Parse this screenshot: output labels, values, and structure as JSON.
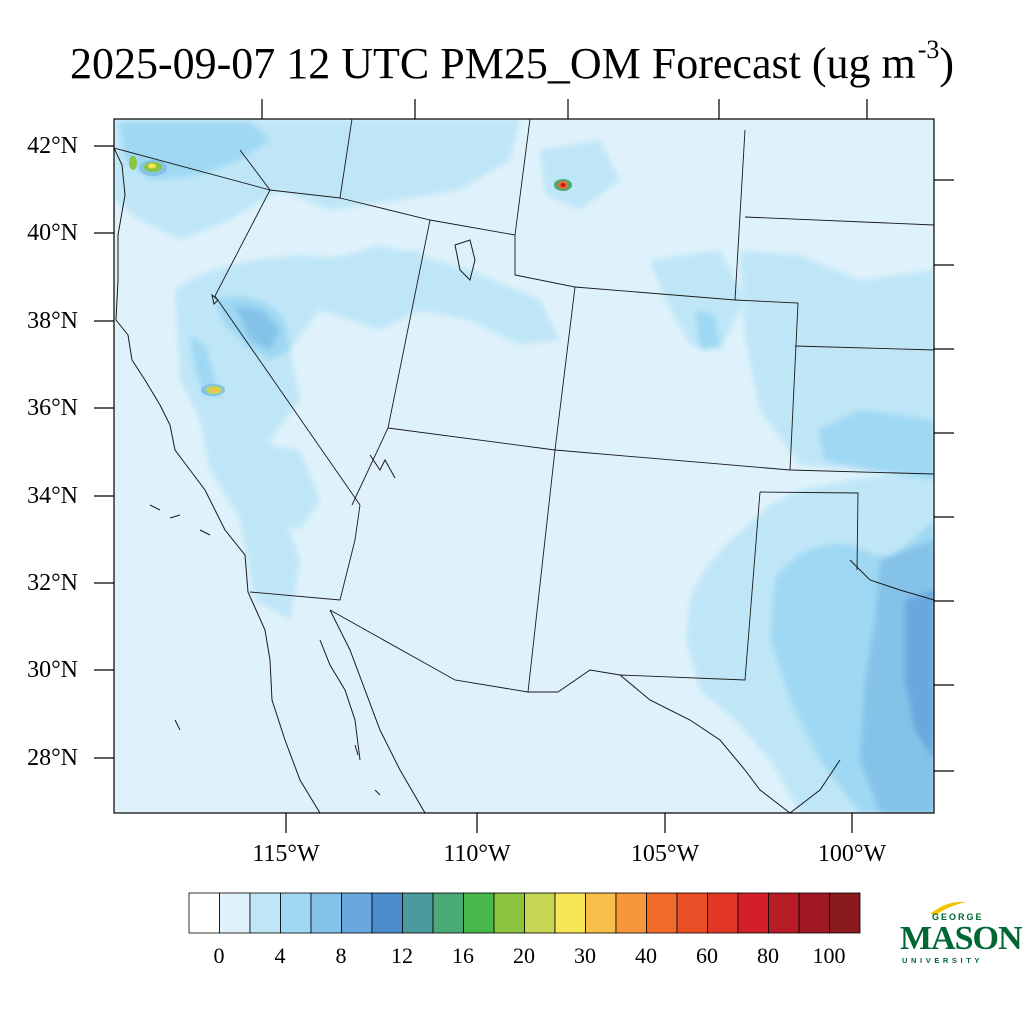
{
  "title": {
    "text": "2025-09-07 12 UTC PM25_OM Forecast (ug m",
    "superscript": "-3",
    "close": ")"
  },
  "axes": {
    "lat_labels": [
      "42°N",
      "40°N",
      "38°N",
      "36°N",
      "34°N",
      "32°N",
      "30°N",
      "28°N"
    ],
    "lon_labels": [
      "115°W",
      "110°W",
      "105°W",
      "100°W"
    ]
  },
  "colorbar": {
    "labels": [
      "0",
      "4",
      "8",
      "12",
      "16",
      "20",
      "30",
      "40",
      "60",
      "80",
      "100"
    ],
    "colors": [
      "#ffffff",
      "#dff2fb",
      "#bfe6f7",
      "#9fd8f3",
      "#84c2e8",
      "#69a8dd",
      "#4b8ccc",
      "#4a9a9e",
      "#4aaa76",
      "#46b748",
      "#8cc43f",
      "#c6d553",
      "#f6e556",
      "#f8bf4a",
      "#f6973c",
      "#f26a2a",
      "#e94e26",
      "#e23726",
      "#d21f2a",
      "#b81c27",
      "#9f1823",
      "#8b1a1c"
    ]
  },
  "map_colors": {
    "background": "#dff2fb",
    "light": "#bfe6f7",
    "medium": "#9fd8f3",
    "mid": "#84c2e8",
    "darker": "#69a8dd",
    "boundary": "#1a1a1a"
  },
  "logo": {
    "top": "GEORGE",
    "main": "MASON",
    "bottom": "UNIVERSITY"
  }
}
